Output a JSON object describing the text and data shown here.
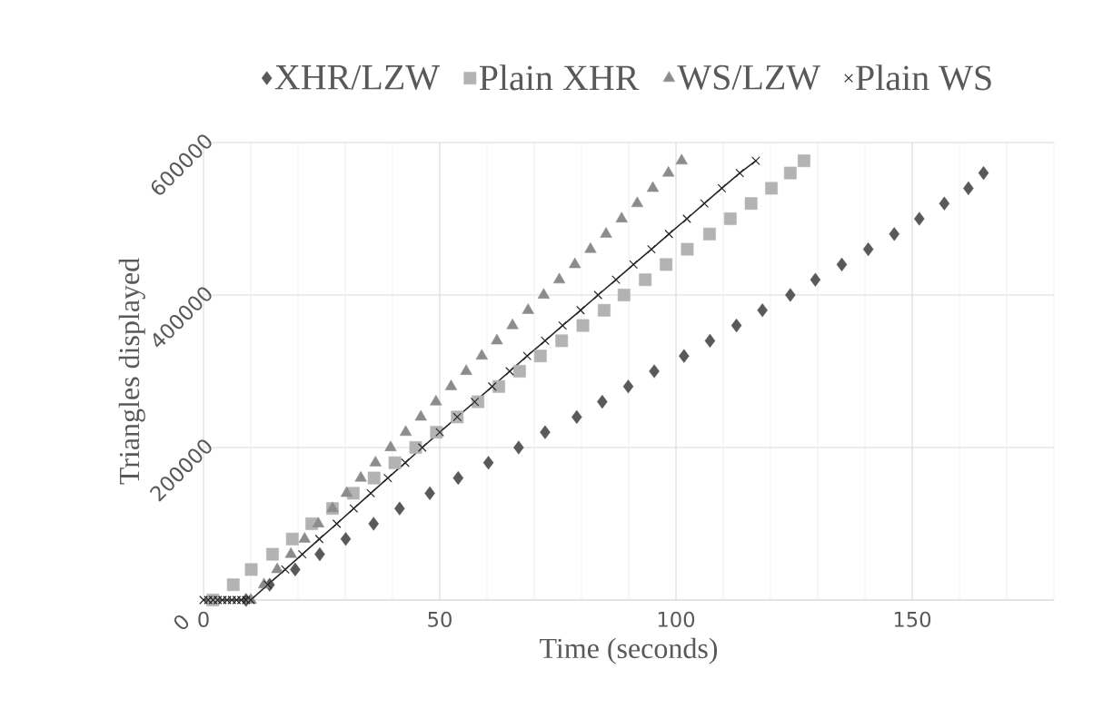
{
  "chart_data": {
    "type": "scatter",
    "xlabel": "Time (seconds)",
    "ylabel": "Triangles displayed",
    "xlim": [
      0,
      180
    ],
    "ylim": [
      0,
      600000
    ],
    "xticks": [
      0,
      {
        "value": 10,
        "label": null
      },
      {
        "value": 20,
        "label": null
      },
      {
        "value": 30,
        "label": null
      },
      {
        "value": 40,
        "label": null
      },
      50,
      {
        "value": 60,
        "label": null
      },
      {
        "value": 70,
        "label": null
      },
      {
        "value": 80,
        "label": null
      },
      {
        "value": 90,
        "label": null
      },
      100,
      {
        "value": 110,
        "label": null
      },
      {
        "value": 120,
        "label": null
      },
      {
        "value": 130,
        "label": null
      },
      {
        "value": 140,
        "label": null
      },
      150,
      {
        "value": 160,
        "label": null
      },
      {
        "value": 170,
        "label": null
      },
      {
        "value": 180,
        "label": null
      }
    ],
    "yticks": [
      0,
      200000,
      400000,
      600000
    ],
    "grid": true,
    "legend": "top",
    "series": [
      {
        "name": "XHR/LZW",
        "color": "#595959",
        "marker": "diamond",
        "x": [
          9,
          14,
          19.4,
          24.6,
          30.1,
          36,
          41.5,
          47.9,
          53.9,
          60.3,
          66.7,
          72.3,
          79,
          84.4,
          89.9,
          95.4,
          101.7,
          107.2,
          112.8,
          118.3,
          124.2,
          129.5,
          135.1,
          140.7,
          146.2,
          151.5,
          156.8,
          161.9,
          165.1
        ],
        "values": [
          0,
          20000,
          40000,
          60000,
          80000,
          100000,
          120000,
          140000,
          160000,
          180000,
          200000,
          220000,
          240000,
          260000,
          280000,
          300000,
          320000,
          340000,
          360000,
          380000,
          400000,
          420000,
          440000,
          460000,
          480000,
          500000,
          520000,
          540000,
          560000
        ]
      },
      {
        "name": "Plain XHR",
        "color": "#b3b3b3",
        "marker": "square",
        "x": [
          2,
          6.3,
          10.1,
          14.6,
          18.8,
          22.9,
          27.3,
          31.7,
          36.1,
          40.5,
          44.9,
          49.3,
          53.7,
          58.1,
          62.5,
          66.9,
          71.3,
          75.8,
          80.3,
          84.8,
          89,
          93.5,
          97.9,
          102.4,
          107.1,
          111.5,
          115.9,
          120.2,
          124.2,
          127.1
        ],
        "values": [
          0,
          20000,
          40000,
          60000,
          80000,
          100000,
          120000,
          140000,
          160000,
          180000,
          200000,
          220000,
          240000,
          260000,
          280000,
          300000,
          320000,
          340000,
          360000,
          380000,
          400000,
          420000,
          440000,
          460000,
          480000,
          500000,
          520000,
          540000,
          560000,
          576000
        ]
      },
      {
        "name": "WS/LZW",
        "color": "#8c8c8c",
        "marker": "triangle",
        "x": [
          10,
          12.8,
          15.6,
          18.5,
          21.4,
          24.3,
          27.3,
          30.3,
          33.3,
          36.4,
          39.6,
          42.8,
          46,
          49.2,
          52.4,
          55.6,
          58.9,
          62.1,
          65.4,
          68.7,
          72,
          75.3,
          78.6,
          81.9,
          85.2,
          88.5,
          91.8,
          95.1,
          98.4,
          101.2
        ],
        "values": [
          0,
          20000,
          40000,
          60000,
          80000,
          100000,
          120000,
          140000,
          160000,
          180000,
          200000,
          220000,
          240000,
          260000,
          280000,
          300000,
          320000,
          340000,
          360000,
          380000,
          400000,
          420000,
          440000,
          460000,
          480000,
          500000,
          520000,
          540000,
          560000,
          576000
        ]
      },
      {
        "name": "Plain WS",
        "type": "line",
        "line_style": "solid",
        "color": "#262626",
        "marker": "cross",
        "x": [
          0,
          1,
          2,
          3,
          4,
          5,
          6,
          7,
          8,
          9,
          10,
          13.6,
          17.3,
          20.9,
          24.5,
          28.2,
          31.8,
          35.4,
          39,
          42.7,
          46.3,
          50,
          53.7,
          57.4,
          61.1,
          64.8,
          68.5,
          72.3,
          76,
          79.8,
          83.5,
          87.3,
          91,
          94.8,
          98.5,
          102.3,
          106,
          109.7,
          113.5,
          116.9
        ],
        "values": [
          0,
          0,
          0,
          0,
          0,
          0,
          0,
          0,
          0,
          0,
          0,
          20000,
          40000,
          60000,
          80000,
          100000,
          120000,
          140000,
          160000,
          180000,
          200000,
          220000,
          240000,
          260000,
          280000,
          300000,
          320000,
          340000,
          360000,
          380000,
          400000,
          420000,
          440000,
          460000,
          480000,
          500000,
          520000,
          540000,
          560000,
          576000
        ]
      }
    ]
  }
}
